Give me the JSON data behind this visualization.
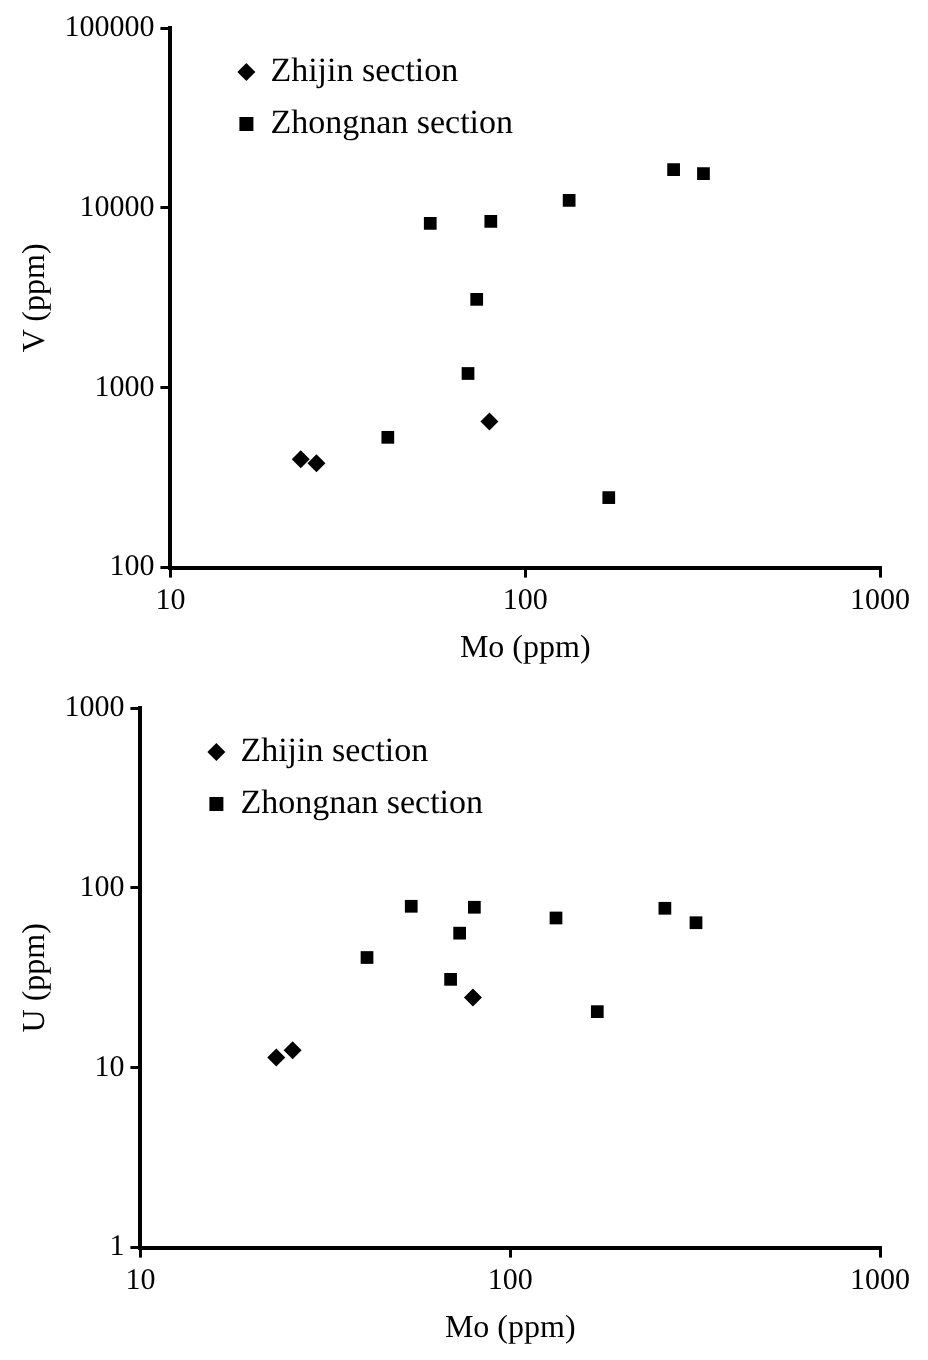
{
  "chart_data": [
    {
      "type": "scatter",
      "xlabel": "Mo (ppm)",
      "ylabel": "V (ppm)",
      "log": "xy",
      "legend": "top left",
      "xlim": [
        10,
        1000
      ],
      "xticks": [
        10,
        100,
        1000
      ],
      "ylim": [
        100,
        100000
      ],
      "yticks": [
        100,
        1000,
        10000,
        100000
      ],
      "series": [
        {
          "name": "Zhijin section",
          "color": "#000000",
          "marker": "diamond",
          "x": [
            23.3,
            25.8,
            79.3
          ],
          "values": [
            400,
            380,
            650
          ]
        },
        {
          "name": "Zhongnan section",
          "color": "#000000",
          "marker": "square",
          "x": [
            54,
            80,
            73,
            69,
            41,
            172,
            133,
            262,
            318
          ],
          "values": [
            8200,
            8400,
            3100,
            1200,
            530,
            245,
            11000,
            16300,
            15500
          ]
        }
      ]
    },
    {
      "type": "scatter",
      "xlabel": "Mo (ppm)",
      "ylabel": "U (ppm)",
      "log": "xy",
      "legend": "top left",
      "xlim": [
        10,
        1000
      ],
      "xticks": [
        10,
        100,
        1000
      ],
      "ylim": [
        1,
        1000
      ],
      "yticks": [
        1,
        10,
        100,
        1000
      ],
      "series": [
        {
          "name": "Zhijin section",
          "color": "#000000",
          "marker": "diamond",
          "x": [
            23.3,
            25.8,
            79.3
          ],
          "values": [
            11.4,
            12.5,
            24.6
          ]
        },
        {
          "name": "Zhongnan section",
          "color": "#000000",
          "marker": "square",
          "x": [
            54,
            80,
            73,
            69,
            41,
            172,
            133,
            262,
            318
          ],
          "values": [
            79,
            78,
            56,
            31,
            41,
            20.5,
            68,
            77,
            64
          ]
        }
      ]
    }
  ]
}
